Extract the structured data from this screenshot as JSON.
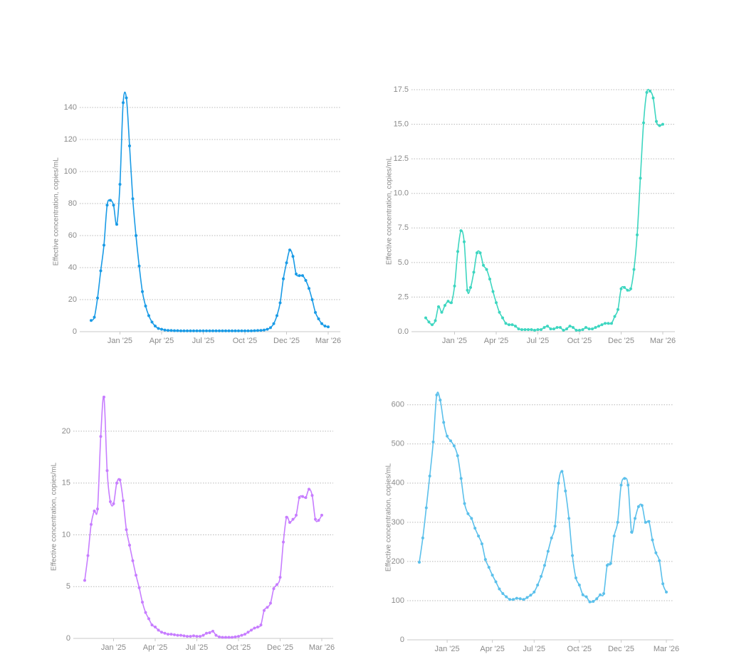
{
  "chart_data": [
    {
      "type": "line",
      "y_label": "Effective concentration, copies/mL",
      "color": "#1a9be6",
      "grid": true,
      "categories": [
        null,
        null,
        null,
        null,
        null,
        null,
        null,
        null,
        null,
        "Jan '25",
        null,
        null,
        null,
        null,
        null,
        null,
        null,
        null,
        null,
        null,
        null,
        null,
        "Apr '25",
        null,
        null,
        null,
        null,
        null,
        null,
        null,
        null,
        null,
        null,
        null,
        null,
        "Jul '25",
        null,
        null,
        null,
        null,
        null,
        null,
        null,
        null,
        null,
        null,
        null,
        null,
        "Oct '25",
        null,
        null,
        null,
        null,
        null,
        null,
        null,
        null,
        null,
        null,
        null,
        null,
        "Dec '25",
        null,
        null,
        null,
        null,
        null,
        null,
        null,
        null,
        null,
        null,
        null,
        null,
        "Mar '26"
      ],
      "values": [
        7,
        9,
        21,
        38,
        54,
        79,
        82,
        79,
        67,
        92,
        143,
        146,
        116,
        83,
        60,
        41,
        25,
        16,
        10,
        6,
        3.5,
        2,
        1.5,
        1,
        0.8,
        0.7,
        0.6,
        0.6,
        0.5,
        0.5,
        0.5,
        0.5,
        0.5,
        0.5,
        0.5,
        0.5,
        0.5,
        0.5,
        0.5,
        0.5,
        0.5,
        0.5,
        0.5,
        0.5,
        0.5,
        0.5,
        0.5,
        0.5,
        0.5,
        0.5,
        0.5,
        0.6,
        0.7,
        0.8,
        1,
        1.5,
        2.5,
        5,
        10,
        18,
        33,
        43,
        51,
        47,
        36,
        35,
        35,
        32,
        27,
        20,
        12,
        8,
        5,
        3.5,
        3
      ],
      "ylim": [
        0,
        150
      ],
      "yticks": [
        0,
        20,
        40,
        60,
        80,
        100,
        120,
        140
      ]
    },
    {
      "type": "line",
      "y_label": "Effective concentration, copies/mL",
      "color": "#3dd6c0",
      "grid": true,
      "categories": [
        null,
        null,
        null,
        null,
        null,
        null,
        null,
        null,
        null,
        "Jan '25",
        null,
        null,
        null,
        null,
        null,
        null,
        null,
        null,
        null,
        null,
        null,
        null,
        "Apr '25",
        null,
        null,
        null,
        null,
        null,
        null,
        null,
        null,
        null,
        null,
        null,
        null,
        "Jul '25",
        null,
        null,
        null,
        null,
        null,
        null,
        null,
        null,
        null,
        null,
        null,
        null,
        "Oct '25",
        null,
        null,
        null,
        null,
        null,
        null,
        null,
        null,
        null,
        null,
        null,
        null,
        "Dec '25",
        null,
        null,
        null,
        null,
        null,
        null,
        null,
        null,
        null,
        null,
        null,
        null,
        "Mar '26"
      ],
      "values": [
        1.0,
        0.7,
        0.5,
        0.8,
        1.8,
        1.4,
        1.9,
        2.2,
        2.1,
        3.3,
        5.8,
        7.3,
        6.5,
        3.0,
        3.2,
        4.3,
        5.7,
        5.7,
        4.8,
        4.5,
        3.8,
        2.9,
        2.1,
        1.4,
        1.0,
        0.6,
        0.5,
        0.5,
        0.4,
        0.2,
        0.15,
        0.15,
        0.15,
        0.15,
        0.1,
        0.15,
        0.15,
        0.3,
        0.4,
        0.2,
        0.2,
        0.3,
        0.3,
        0.1,
        0.2,
        0.4,
        0.3,
        0.1,
        0.1,
        0.15,
        0.3,
        0.2,
        0.2,
        0.3,
        0.4,
        0.5,
        0.6,
        0.6,
        0.6,
        1.1,
        1.6,
        3.1,
        3.2,
        3.0,
        3.1,
        4.5,
        7.0,
        11.1,
        15.1,
        17.3,
        17.4,
        16.9,
        15.2,
        14.9,
        15.0
      ],
      "ylim": [
        0,
        17.5
      ],
      "yticks": [
        {
          "value": 0,
          "label": "0.0"
        },
        2.5,
        {
          "value": 5,
          "label": "5.0"
        },
        7.5,
        {
          "value": 10,
          "label": "10.0"
        },
        12.5,
        {
          "value": 15,
          "label": "15.0"
        },
        17.5
      ]
    },
    {
      "type": "line",
      "y_label": "Effective concentration, copies/mL",
      "color": "#c77dff",
      "grid": true,
      "categories": [
        null,
        null,
        null,
        null,
        null,
        null,
        null,
        null,
        null,
        "Jan '25",
        null,
        null,
        null,
        null,
        null,
        null,
        null,
        null,
        null,
        null,
        null,
        null,
        "Apr '25",
        null,
        null,
        null,
        null,
        null,
        null,
        null,
        null,
        null,
        null,
        null,
        null,
        "Jul '25",
        null,
        null,
        null,
        null,
        null,
        null,
        null,
        null,
        null,
        null,
        null,
        null,
        "Oct '25",
        null,
        null,
        null,
        null,
        null,
        null,
        null,
        null,
        null,
        null,
        null,
        null,
        "Dec '25",
        null,
        null,
        null,
        null,
        null,
        null,
        null,
        null,
        null,
        null,
        null,
        null,
        "Mar '26"
      ],
      "values": [
        5.6,
        8.0,
        11.0,
        12.3,
        12.5,
        19.5,
        23.3,
        16.2,
        13.2,
        13.0,
        15.0,
        15.3,
        13.3,
        10.5,
        9.0,
        7.5,
        6.1,
        4.9,
        3.5,
        2.5,
        1.9,
        1.3,
        1.1,
        0.8,
        0.6,
        0.5,
        0.4,
        0.4,
        0.35,
        0.3,
        0.3,
        0.25,
        0.2,
        0.2,
        0.25,
        0.2,
        0.2,
        0.3,
        0.5,
        0.55,
        0.7,
        0.3,
        0.15,
        0.1,
        0.1,
        0.1,
        0.1,
        0.15,
        0.2,
        0.3,
        0.4,
        0.6,
        0.8,
        1.0,
        1.1,
        1.3,
        2.7,
        3.0,
        3.4,
        4.8,
        5.2,
        5.9,
        9.3,
        11.7,
        11.2,
        11.5,
        11.9,
        13.6,
        13.7,
        13.6,
        14.4,
        13.8,
        11.5,
        11.4,
        11.9
      ],
      "ylim": [
        0,
        23.5
      ],
      "yticks": [
        0,
        5,
        10,
        15,
        20
      ]
    },
    {
      "type": "line",
      "y_label": "Effective concentration, copies/mL",
      "color": "#5bc0eb",
      "grid": true,
      "categories": [
        null,
        null,
        null,
        null,
        null,
        null,
        null,
        null,
        "Jan '25",
        null,
        null,
        null,
        null,
        null,
        null,
        null,
        null,
        null,
        null,
        null,
        null,
        "Apr '25",
        null,
        null,
        null,
        null,
        null,
        null,
        null,
        null,
        null,
        null,
        null,
        "Jul '25",
        null,
        null,
        null,
        null,
        null,
        null,
        null,
        null,
        null,
        null,
        null,
        null,
        "Oct '25",
        null,
        null,
        null,
        null,
        null,
        null,
        null,
        null,
        null,
        null,
        null,
        "Dec '25",
        null,
        null,
        null,
        null,
        null,
        null,
        null,
        null,
        null,
        null,
        null,
        null,
        "Mar '26"
      ],
      "values": [
        198,
        260,
        337,
        418,
        505,
        625,
        612,
        555,
        520,
        508,
        495,
        470,
        412,
        348,
        322,
        310,
        285,
        265,
        245,
        205,
        185,
        165,
        148,
        130,
        118,
        110,
        103,
        103,
        106,
        105,
        103,
        108,
        114,
        122,
        140,
        162,
        190,
        226,
        260,
        290,
        400,
        430,
        380,
        310,
        215,
        158,
        140,
        115,
        110,
        97,
        98,
        105,
        115,
        118,
        190,
        195,
        265,
        300,
        395,
        412,
        395,
        275,
        310,
        340,
        343,
        300,
        302,
        255,
        222,
        202,
        143,
        122
      ],
      "ylim": [
        0,
        625
      ],
      "yticks": [
        0,
        100,
        200,
        300,
        400,
        500,
        600
      ]
    }
  ]
}
